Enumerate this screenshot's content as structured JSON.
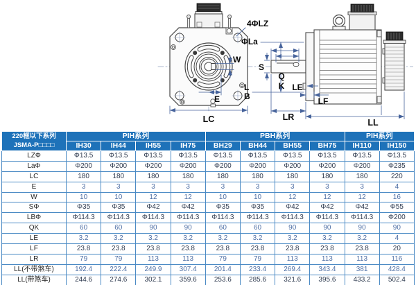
{
  "drawing": {
    "labels": {
      "lz": "4ΦLZ",
      "la": "ΦLa",
      "l": "L",
      "b": "B",
      "w": "W",
      "e": "E",
      "lc": "LC",
      "s": "S",
      "q": "Q",
      "k": "K",
      "le": "LE",
      "lf": "LF",
      "lr": "LR",
      "ll": "LL"
    }
  },
  "table": {
    "corner_header": {
      "line1": "220框以下系列",
      "line2": "JSMA-P□□□□"
    },
    "groups": [
      {
        "label": "PIH系列",
        "span": 4
      },
      {
        "label": "PBH系列",
        "span": 4
      },
      {
        "label": "PIH系列",
        "span": 2
      }
    ],
    "models": [
      "IH30",
      "IH44",
      "IH55",
      "IH75",
      "BH29",
      "BH44",
      "BH55",
      "BH75",
      "IH110",
      "IH150"
    ],
    "rows": [
      {
        "label": "LZΦ",
        "tone": "dark",
        "values": [
          "Φ13.5",
          "Φ13.5",
          "Φ13.5",
          "Φ13.5",
          "Φ13.5",
          "Φ13.5",
          "Φ13.5",
          "Φ13.5",
          "Φ13.5",
          "Φ13.5"
        ]
      },
      {
        "label": "LaΦ",
        "tone": "dark",
        "values": [
          "Φ200",
          "Φ200",
          "Φ200",
          "Φ200",
          "Φ200",
          "Φ200",
          "Φ200",
          "Φ200",
          "Φ200",
          "Φ235"
        ]
      },
      {
        "label": "LC",
        "tone": "dark",
        "values": [
          "180",
          "180",
          "180",
          "180",
          "180",
          "180",
          "180",
          "180",
          "180",
          "220"
        ]
      },
      {
        "label": "E",
        "tone": "blue",
        "values": [
          "3",
          "3",
          "3",
          "3",
          "3",
          "3",
          "3",
          "3",
          "3",
          "4"
        ]
      },
      {
        "label": "W",
        "tone": "blue",
        "values": [
          "10",
          "10",
          "12",
          "12",
          "10",
          "10",
          "12",
          "12",
          "12",
          "16"
        ]
      },
      {
        "label": "SΦ",
        "tone": "dark",
        "values": [
          "Φ35",
          "Φ35",
          "Φ42",
          "Φ42",
          "Φ35",
          "Φ35",
          "Φ42",
          "Φ42",
          "Φ42",
          "Φ55"
        ]
      },
      {
        "label": "LBΦ",
        "tone": "dark",
        "values": [
          "Φ114.3",
          "Φ114.3",
          "Φ114.3",
          "Φ114.3",
          "Φ114.3",
          "Φ114.3",
          "Φ114.3",
          "Φ114.3",
          "Φ114.3",
          "Φ200"
        ]
      },
      {
        "label": "QK",
        "tone": "blue",
        "values": [
          "60",
          "60",
          "90",
          "90",
          "60",
          "60",
          "90",
          "90",
          "90",
          "90"
        ]
      },
      {
        "label": "LE",
        "tone": "blue",
        "values": [
          "3.2",
          "3.2",
          "3.2",
          "3.2",
          "3.2",
          "3.2",
          "3.2",
          "3.2",
          "3.2",
          "4"
        ]
      },
      {
        "label": "LF",
        "tone": "dark",
        "values": [
          "23.8",
          "23.8",
          "23.8",
          "23.8",
          "23.8",
          "23.8",
          "23.8",
          "23.8",
          "23.8",
          "20"
        ]
      },
      {
        "label": "LR",
        "tone": "blue",
        "values": [
          "79",
          "79",
          "113",
          "113",
          "79",
          "79",
          "113",
          "113",
          "113",
          "116"
        ]
      },
      {
        "label": "LL(不带煞车)",
        "tone": "blue",
        "values": [
          "192.4",
          "222.4",
          "249.9",
          "307.4",
          "201.4",
          "233.4",
          "269.4",
          "343.4",
          "381",
          "428.4"
        ]
      },
      {
        "label": "LL(带煞车)",
        "tone": "dark",
        "values": [
          "244.6",
          "274.6",
          "302.1",
          "359.6",
          "253.6",
          "285.6",
          "321.6",
          "395.6",
          "433.2",
          "502.4"
        ]
      }
    ]
  },
  "colors": {
    "header_bg": "#1e72b9",
    "grid_line": "#4a8ac4",
    "outer_border": "#1b5c9c",
    "value_dark": "#2f3b50",
    "value_blue": "#4e6fa5",
    "dimension_line": "#46639b",
    "drawing_line": "#474747"
  }
}
